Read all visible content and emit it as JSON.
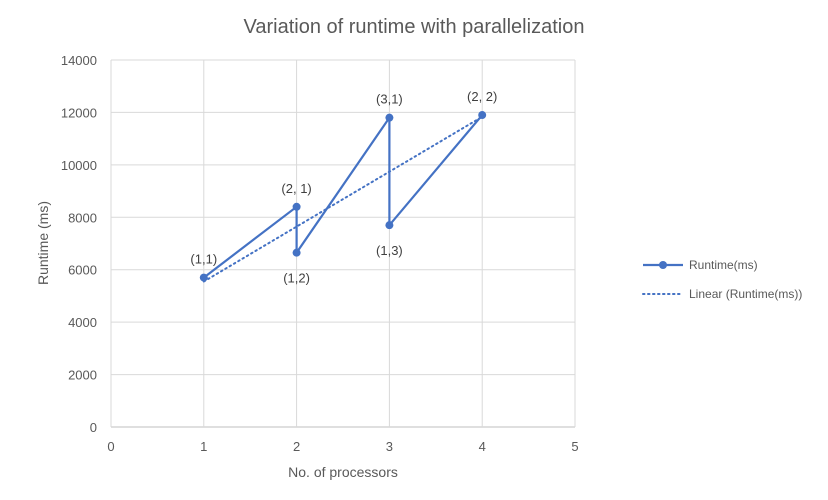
{
  "chart_data": {
    "type": "line",
    "title": "Variation of runtime with parallelization",
    "xlabel": "No. of processors",
    "ylabel": "Runtime (ms)",
    "xlim": [
      0,
      5
    ],
    "ylim": [
      0,
      14000
    ],
    "xticks": [
      0,
      1,
      2,
      3,
      4,
      5
    ],
    "yticks": [
      0,
      2000,
      4000,
      6000,
      8000,
      10000,
      12000,
      14000
    ],
    "grid": true,
    "legend_position": "right",
    "series": [
      {
        "name": "Runtime(ms)",
        "color": "#4472C4",
        "x": [
          1,
          2,
          2,
          3,
          3,
          4
        ],
        "y": [
          5700,
          8400,
          6650,
          11800,
          7700,
          11900
        ],
        "labels": [
          "(1,1)",
          "(2, 1)",
          "(1,2)",
          "(3,1)",
          "(1,3)",
          "(2, 2)"
        ],
        "label_positions": [
          "above",
          "above",
          "below",
          "above",
          "below",
          "above"
        ]
      }
    ],
    "trendline": {
      "name": "Linear (Runtime(ms))",
      "type": "linear",
      "style": "dotted",
      "color": "#4472C4"
    }
  }
}
